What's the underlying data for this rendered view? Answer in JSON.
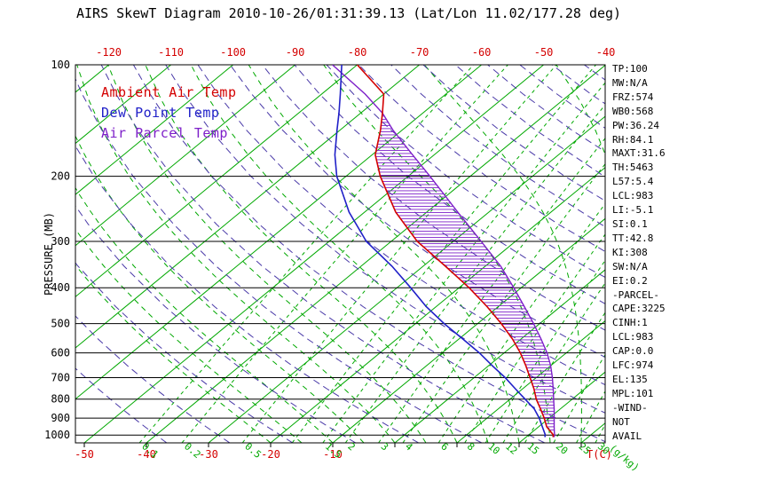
{
  "chart_data": {
    "type": "skewt",
    "title": "AIRS SkewT Diagram 2010-10-26/01:31:39.13 (Lat/Lon 11.02/177.28 deg)",
    "axes": {
      "pressure": {
        "label": "PRESSURE (MB)",
        "scale": "log",
        "range": [
          100,
          1050
        ],
        "ticks": [
          100,
          200,
          300,
          400,
          500,
          600,
          700,
          800,
          900,
          1000
        ]
      },
      "temperature": {
        "unit_label": "T(C)",
        "isotherm_step": 10,
        "top_ticks": [
          -120,
          -110,
          -100,
          -90,
          -80,
          -70,
          -60,
          -50,
          -40
        ],
        "bottom_ticks": [
          -50,
          -40,
          -30,
          -20,
          -10
        ]
      },
      "mixing_ratio": {
        "unit_label": "(g/kg)",
        "lines": [
          0.1,
          0.2,
          0.5,
          1,
          1.5,
          2,
          3,
          4,
          6,
          8,
          10,
          12,
          15,
          20,
          25,
          30
        ],
        "labels": [
          "0.1",
          "0.2",
          "0.5",
          "1.5",
          "2",
          "3",
          "4",
          "6",
          "8",
          "10",
          "12",
          "15",
          "20",
          "25",
          "30"
        ]
      }
    },
    "colors": {
      "isotherm": "#00a800",
      "mixing": "#00a800",
      "moist_adiabat": "#00a800",
      "dry_adiabat": "#4a3aa8",
      "ambient": "#d40000",
      "dewpoint": "#2020c8",
      "parcel": "#7d1fc9",
      "hatch": "#7d1fc9",
      "axis": "#000000"
    },
    "dry_adiabats": {
      "theta_min": -40,
      "theta_max": 180,
      "step": 10
    },
    "moist_adiabats": {
      "thetaw_min": -20,
      "thetaw_max": 40,
      "step": 5
    },
    "series": {
      "ambient": {
        "name": "Ambient Air Temp",
        "color": "#d40000",
        "points": [
          [
            1013,
            24.3
          ],
          [
            1000,
            24.0
          ],
          [
            950,
            21.3
          ],
          [
            900,
            19.2
          ],
          [
            850,
            16.8
          ],
          [
            800,
            14.2
          ],
          [
            750,
            11.8
          ],
          [
            700,
            9.0
          ],
          [
            650,
            6.0
          ],
          [
            600,
            2.6
          ],
          [
            550,
            -1.4
          ],
          [
            500,
            -6.2
          ],
          [
            450,
            -11.8
          ],
          [
            400,
            -18.4
          ],
          [
            350,
            -26.4
          ],
          [
            300,
            -35.8
          ],
          [
            250,
            -45.0
          ],
          [
            200,
            -54.5
          ],
          [
            175,
            -59.5
          ],
          [
            150,
            -63.5
          ],
          [
            135,
            -66.5
          ],
          [
            120,
            -70.0
          ],
          [
            100,
            -80.0
          ]
        ]
      },
      "dewpoint": {
        "name": "Dew Point Temp",
        "color": "#2020c8",
        "points": [
          [
            1013,
            23.0
          ],
          [
            1000,
            22.7
          ],
          [
            950,
            20.6
          ],
          [
            900,
            18.4
          ],
          [
            850,
            15.8
          ],
          [
            800,
            12.4
          ],
          [
            750,
            8.8
          ],
          [
            700,
            5.0
          ],
          [
            650,
            0.6
          ],
          [
            600,
            -4.0
          ],
          [
            550,
            -9.4
          ],
          [
            500,
            -15.4
          ],
          [
            450,
            -21.6
          ],
          [
            400,
            -27.8
          ],
          [
            350,
            -35.0
          ],
          [
            300,
            -44.0
          ],
          [
            250,
            -52.5
          ],
          [
            200,
            -61.5
          ],
          [
            175,
            -66.0
          ],
          [
            150,
            -70.5
          ],
          [
            135,
            -73.5
          ],
          [
            120,
            -77.0
          ],
          [
            100,
            -82.5
          ]
        ]
      },
      "parcel": {
        "name": "Air Parcel Temp",
        "color": "#7d1fc9",
        "points": [
          [
            1013,
            24.5
          ],
          [
            1000,
            24.2
          ],
          [
            983,
            23.6
          ],
          [
            950,
            22.5
          ],
          [
            900,
            20.8
          ],
          [
            850,
            19.0
          ],
          [
            800,
            17.0
          ],
          [
            750,
            14.9
          ],
          [
            700,
            12.6
          ],
          [
            650,
            10.0
          ],
          [
            600,
            6.9
          ],
          [
            550,
            3.2
          ],
          [
            500,
            -1.0
          ],
          [
            450,
            -5.8
          ],
          [
            400,
            -11.2
          ],
          [
            350,
            -17.5
          ],
          [
            300,
            -25.5
          ],
          [
            250,
            -35.0
          ],
          [
            200,
            -46.5
          ],
          [
            175,
            -53.5
          ],
          [
            150,
            -61.5
          ],
          [
            135,
            -66.5
          ],
          [
            120,
            -73.0
          ],
          [
            100,
            -84.0
          ]
        ]
      }
    },
    "cape_hatch": {
      "top_mb": 135,
      "bottom_mb": 974
    },
    "stats": [
      "TP:100",
      "MW:N/A",
      "FRZ:574",
      "WB0:568",
      "PW:36.24",
      "RH:84.1",
      "MAXT:31.6",
      "TH:5463",
      "L57:5.4",
      "LCL:983",
      "LI:-5.1",
      "SI:0.1",
      "TT:42.8",
      "KI:308",
      "SW:N/A",
      "EI:0.2",
      "-PARCEL-",
      "CAPE:3225",
      "CINH:1",
      "LCL:983",
      "CAP:0.0",
      "LFC:974",
      "EL:135",
      "MPL:101",
      "-WIND-",
      "NOT",
      "AVAIL"
    ]
  }
}
